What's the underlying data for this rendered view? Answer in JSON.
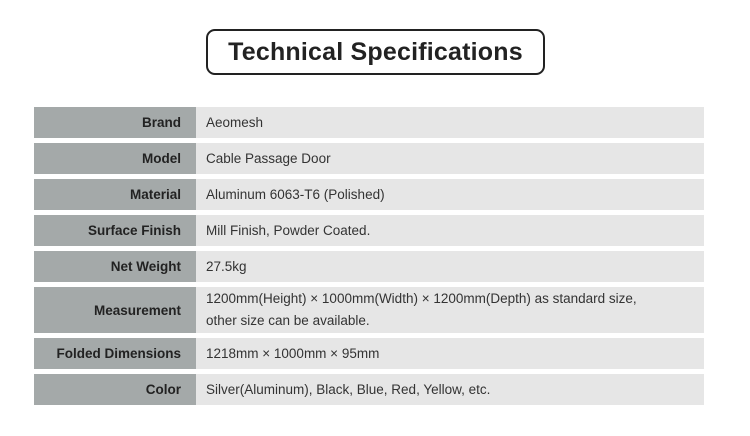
{
  "title": "Technical Specifications",
  "specs": [
    {
      "label": "Brand",
      "value": "Aeomesh"
    },
    {
      "label": "Model",
      "value": "Cable Passage Door"
    },
    {
      "label": "Material",
      "value": "Aluminum 6063-T6 (Polished)"
    },
    {
      "label": "Surface Finish",
      "value": "Mill Finish, Powder Coated."
    },
    {
      "label": "Net Weight",
      "value": "27.5kg"
    },
    {
      "label": "Measurement",
      "value": "1200mm(Height) × 1000mm(Width) × 1200mm(Depth) as standard size,",
      "value2": "other size can be available."
    },
    {
      "label": "Folded Dimensions",
      "value": "1218mm × 1000mm × 95mm"
    },
    {
      "label": "Color",
      "value": "Silver(Aluminum), Black, Blue, Red, Yellow, etc."
    }
  ],
  "colors": {
    "label_bg": "#a4a9a9",
    "value_bg": "#e6e6e6",
    "title_border": "#222222"
  }
}
